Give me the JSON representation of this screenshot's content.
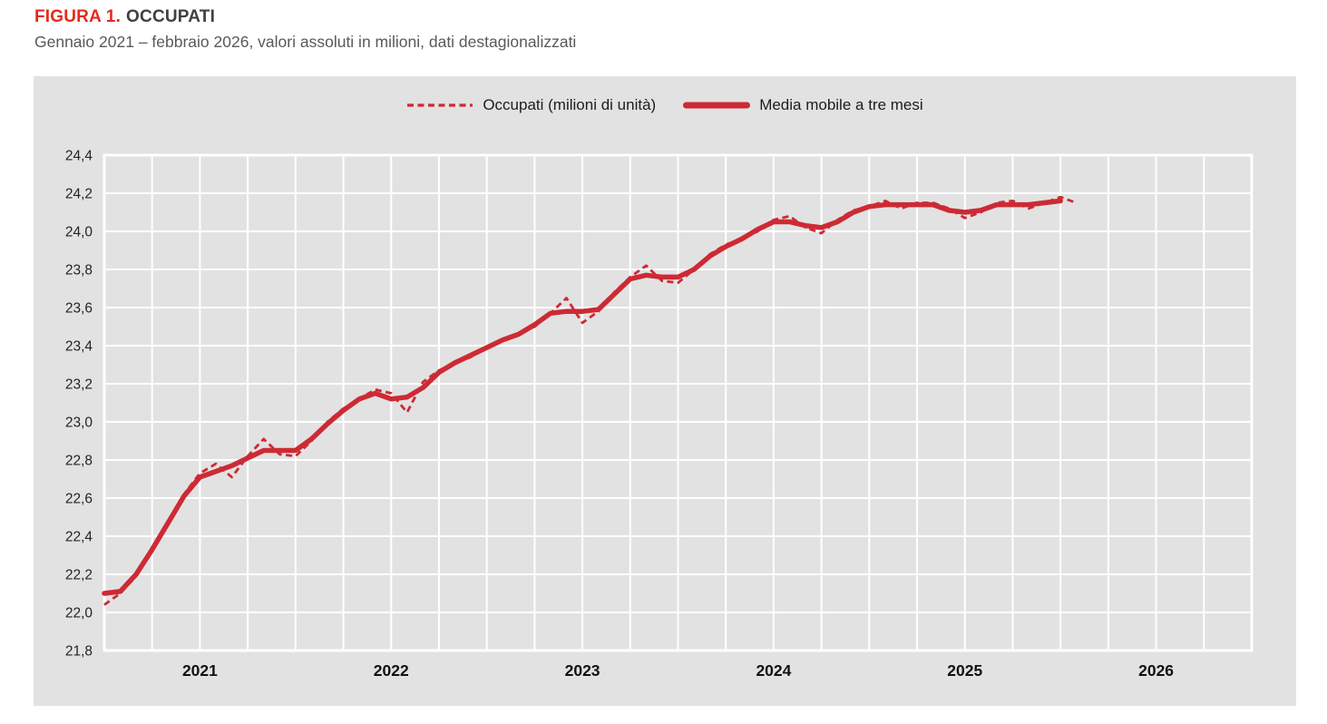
{
  "header": {
    "figure_label": "FIGURA 1.",
    "figure_title": "OCCUPATI",
    "subtitle": "Gennaio 2021 – febbraio 2026, valori assoluti in milioni, dati destagionalizzati",
    "label_color": "#e52a1e",
    "title_color": "#414042",
    "subtitle_color": "#58595b"
  },
  "legend": {
    "items": [
      {
        "label": "Occupati (milioni di unità)",
        "style": "dashed",
        "swatch_icon": "dashed-line-swatch"
      },
      {
        "label": "Media mobile a tre mesi",
        "style": "solid",
        "swatch_icon": "solid-line-swatch"
      }
    ]
  },
  "chart_data": {
    "type": "line",
    "title": "FIGURA 1. OCCUPATI",
    "subtitle": "Gennaio 2021 – febbraio 2026, valori assoluti in milioni, dati destagionalizzati",
    "xlabel": "",
    "ylabel": "",
    "x_start": "2021-01",
    "x_end": "2026-02",
    "frequency": "monthly",
    "x_axis_total_months": 72,
    "x_tick_interval_months": 3,
    "x_year_labels": [
      "2021",
      "2022",
      "2023",
      "2024",
      "2025",
      "2026"
    ],
    "ylim": [
      21.8,
      24.4
    ],
    "y_tick_step": 0.2,
    "y_tick_labels": [
      "21,8",
      "22,0",
      "22,2",
      "22,4",
      "22,6",
      "22,8",
      "23,0",
      "23,2",
      "23,4",
      "23,6",
      "23,8",
      "24,0",
      "24,2",
      "24,4"
    ],
    "grid": true,
    "legend_position": "top-center",
    "panel_bg": "#e2e2e2",
    "grid_color": "#ffffff",
    "line_color": "#cd2a34",
    "tick_label_color": "#242424",
    "year_label_color": "#111111",
    "series": [
      {
        "name": "Occupati (milioni di unità)",
        "style": "dashed",
        "start_month": "2021-01",
        "values": [
          22.04,
          22.1,
          22.19,
          22.32,
          22.48,
          22.62,
          22.73,
          22.78,
          22.71,
          22.82,
          22.91,
          22.83,
          22.82,
          22.9,
          23.0,
          23.07,
          23.12,
          23.17,
          23.15,
          23.05,
          23.21,
          23.27,
          23.31,
          23.34,
          23.39,
          23.43,
          23.46,
          23.5,
          23.57,
          23.65,
          23.52,
          23.58,
          23.68,
          23.76,
          23.82,
          23.74,
          23.73,
          23.8,
          23.88,
          23.93,
          23.96,
          24.0,
          24.06,
          24.08,
          24.02,
          23.99,
          24.06,
          24.11,
          24.13,
          24.16,
          24.12,
          24.15,
          24.15,
          24.12,
          24.07,
          24.1,
          24.15,
          24.16,
          24.12,
          24.15,
          24.18,
          24.15
        ]
      },
      {
        "name": "Media mobile a tre mesi",
        "style": "solid",
        "start_month": "2021-01",
        "values": [
          22.1,
          22.11,
          22.2,
          22.33,
          22.47,
          22.61,
          22.71,
          22.74,
          22.77,
          22.81,
          22.85,
          22.85,
          22.85,
          22.91,
          22.99,
          23.06,
          23.12,
          23.15,
          23.12,
          23.13,
          23.18,
          23.26,
          23.31,
          23.35,
          23.39,
          23.43,
          23.46,
          23.51,
          23.57,
          23.58,
          23.58,
          23.59,
          23.67,
          23.75,
          23.77,
          23.76,
          23.76,
          23.8,
          23.87,
          23.92,
          23.96,
          24.01,
          24.05,
          24.05,
          24.03,
          24.02,
          24.05,
          24.1,
          24.13,
          24.14,
          24.14,
          24.14,
          24.14,
          24.11,
          24.1,
          24.11,
          24.14,
          24.14,
          24.14,
          24.15,
          24.16
        ]
      }
    ]
  }
}
